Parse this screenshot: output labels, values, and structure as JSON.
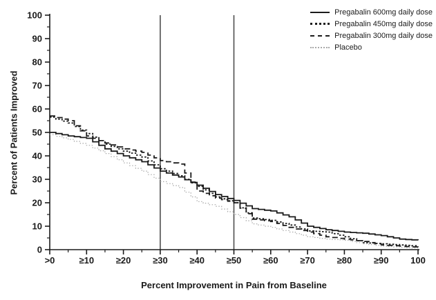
{
  "chart_data": {
    "type": "line",
    "title": "",
    "xlabel": "Percent Improvement in Pain from Baseline",
    "ylabel": "Percent of Patients Improved",
    "xlim": [
      0,
      100
    ],
    "ylim": [
      0,
      100
    ],
    "grid": false,
    "legend_position": "top-right",
    "x_tick_values": [
      0,
      10,
      20,
      30,
      40,
      50,
      60,
      70,
      80,
      90,
      100
    ],
    "x_tick_labels": [
      ">0",
      "≥10",
      "≥20",
      "≥30",
      "≥40",
      "≥50",
      "≥60",
      "≥70",
      "≥80",
      "≥90",
      "100"
    ],
    "y_tick_values": [
      0,
      10,
      20,
      30,
      40,
      50,
      60,
      70,
      80,
      90,
      100
    ],
    "y_tick_labels": [
      "0",
      "10",
      "20",
      "30",
      "40",
      "50",
      "60",
      "70",
      "80",
      "90",
      "100"
    ],
    "minor_tick_step": 5,
    "reference_lines_x": [
      30,
      50
    ],
    "x": [
      0,
      5,
      10,
      15,
      20,
      25,
      30,
      35,
      40,
      45,
      50,
      55,
      60,
      65,
      70,
      75,
      80,
      85,
      90,
      95,
      100
    ],
    "series": [
      {
        "name": "Pregabalin 600mg daily dose",
        "style": "solid",
        "color": "#1a1a1a",
        "values": [
          50,
          48.5,
          47.5,
          43,
          40,
          37.5,
          33.5,
          31,
          27.5,
          23.5,
          21,
          17.5,
          16.5,
          14,
          10,
          8.5,
          7.5,
          7,
          6,
          4.5,
          4
        ]
      },
      {
        "name": "Pregabalin 450mg daily dose",
        "style": "dotted",
        "color": "#1a1a1a",
        "values": [
          56.5,
          54,
          49.5,
          45,
          42,
          39.5,
          34.5,
          31.5,
          27,
          22.5,
          20,
          13.5,
          12.5,
          10.5,
          8,
          7.5,
          5.5,
          3,
          2.5,
          2,
          1.5
        ]
      },
      {
        "name": "Pregabalin 300mg daily dose",
        "style": "dashed",
        "color": "#1a1a1a",
        "values": [
          57,
          55,
          48.5,
          45.5,
          43,
          41.5,
          38,
          36.5,
          25,
          22,
          20,
          13,
          12,
          9.5,
          7.5,
          5.5,
          4.5,
          3.5,
          2,
          1.5,
          1
        ]
      },
      {
        "name": "Placebo",
        "style": "dotted-light",
        "color": "#a8a8a8",
        "values": [
          49,
          47,
          44.5,
          41,
          37,
          33.5,
          29,
          26.5,
          20.5,
          18.5,
          15,
          11,
          9.5,
          7.5,
          5.5,
          4.5,
          4,
          2.5,
          1.5,
          1,
          0.5
        ]
      }
    ]
  },
  "colors": {
    "axis": "#1a1a1a",
    "reference_line": "#4d4d4d",
    "background": "#ffffff"
  }
}
